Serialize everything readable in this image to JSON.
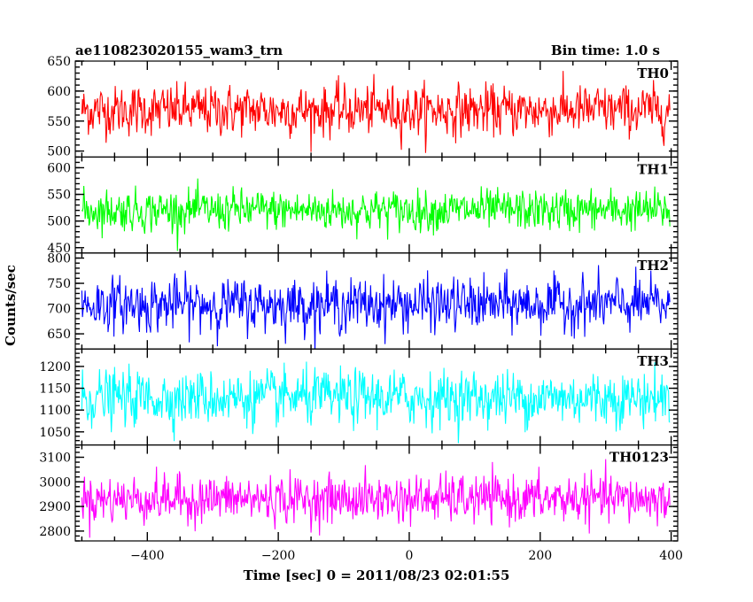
{
  "header": {
    "title": "ae110823020155_wam3_trn",
    "bin_time": "Bin time: 1.0 s"
  },
  "chart_data": {
    "type": "line",
    "xlabel": "Time [sec] 0 = 2011/08/23 02:01:55",
    "ylabel": "Counts/sec",
    "xlim": [
      -510,
      410
    ],
    "x_ticks": [
      -400,
      -200,
      0,
      200,
      400
    ],
    "x_tick_labels": [
      "−400",
      "−200",
      "0",
      "200",
      "400"
    ],
    "x_range": [
      -500,
      398
    ],
    "bin": 1.0,
    "panels": [
      {
        "name": "TH0",
        "color": "#ff0000",
        "ylim": [
          490,
          650
        ],
        "yticks": [
          500,
          550,
          600,
          650
        ],
        "mean": 568,
        "sd": 24
      },
      {
        "name": "TH1",
        "color": "#00ff00",
        "ylim": [
          440,
          620
        ],
        "yticks": [
          450,
          500,
          550,
          600
        ],
        "mean": 520,
        "sd": 22
      },
      {
        "name": "TH2",
        "color": "#0000ff",
        "ylim": [
          620,
          810
        ],
        "yticks": [
          650,
          700,
          750,
          800
        ],
        "mean": 708,
        "sd": 30
      },
      {
        "name": "TH3",
        "color": "#00ffff",
        "ylim": [
          1020,
          1240
        ],
        "yticks": [
          1050,
          1100,
          1150,
          1200
        ],
        "mean": 1128,
        "sd": 36
      },
      {
        "name": "TH0123",
        "color": "#ff00ff",
        "ylim": [
          2760,
          3150
        ],
        "yticks": [
          2800,
          2900,
          3000,
          3100
        ],
        "mean": 2930,
        "sd": 55
      }
    ]
  }
}
